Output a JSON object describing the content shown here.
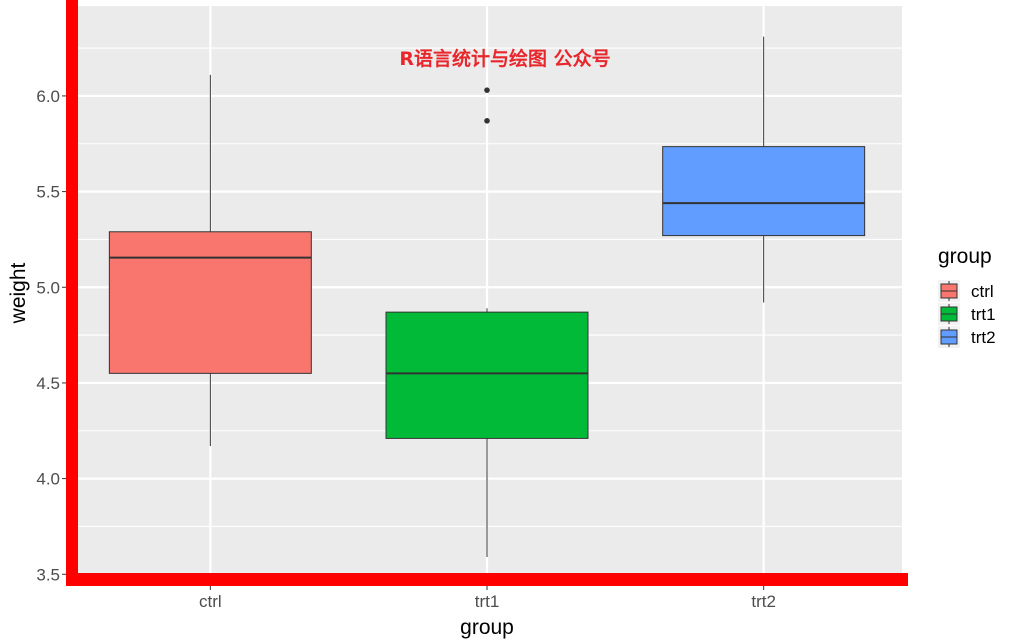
{
  "chart_data": {
    "type": "box",
    "title": "",
    "xlabel": "group",
    "ylabel": "weight",
    "categories": [
      "ctrl",
      "trt1",
      "trt2"
    ],
    "ylim": [
      3.47,
      6.47
    ],
    "yticks": [
      "3.5",
      "4.0",
      "4.5",
      "5.0",
      "5.5",
      "6.0"
    ],
    "grid": true,
    "legend": {
      "title": "group",
      "position": "right",
      "entries": [
        "ctrl",
        "trt1",
        "trt2"
      ]
    },
    "series": [
      {
        "name": "ctrl",
        "color": "#F8766D",
        "min": 4.17,
        "q1": 4.55,
        "median": 5.155,
        "q3": 5.29,
        "max": 6.11,
        "outliers": []
      },
      {
        "name": "trt1",
        "color": "#00BA38",
        "min": 3.59,
        "q1": 4.21,
        "median": 4.55,
        "q3": 4.87,
        "max": 4.89,
        "outliers": [
          5.87,
          6.03
        ]
      },
      {
        "name": "trt2",
        "color": "#619CFF",
        "min": 4.92,
        "q1": 5.27,
        "median": 5.44,
        "q3": 5.735,
        "max": 6.31,
        "outliers": []
      }
    ]
  },
  "watermark": {
    "text": "R语言统计与绘图 公众号",
    "color": "#e8262c"
  },
  "frame": {
    "accent_color": "#ff0000",
    "panel_color": "#ebebeb"
  }
}
